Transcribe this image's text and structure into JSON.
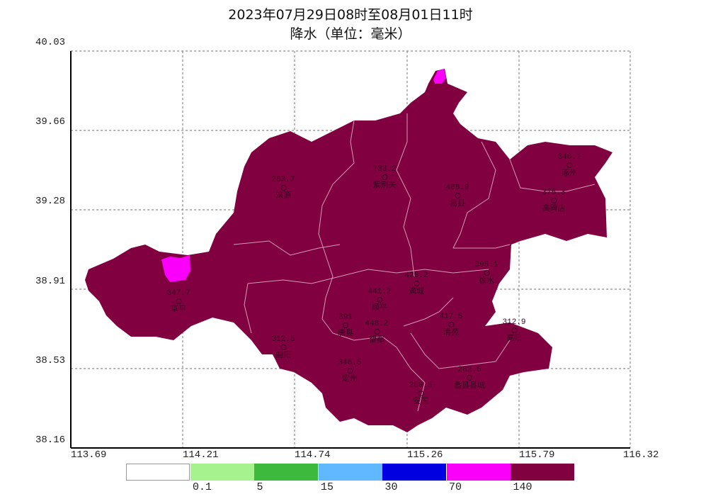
{
  "title": "2023年07月29日08时至08月01日11时",
  "subtitle": "降水（单位：毫米）",
  "y_ticks": [
    "40.03",
    "39.66",
    "39.28",
    "38.91",
    "38.53",
    "38.16"
  ],
  "x_ticks": [
    "113.69",
    "114.21",
    "114.74",
    "115.26",
    "115.79",
    "116.32"
  ],
  "legend": {
    "colors": [
      "#ffffff",
      "#a6f28f",
      "#3dba3d",
      "#61b8ff",
      "#0000e1",
      "#fa00fa",
      "#800040"
    ],
    "labels": [
      "0.1",
      "5",
      "15",
      "30",
      "70",
      "140"
    ]
  },
  "fill_colors": {
    "main": "#800040",
    "secondary": "#fa00fa",
    "border": "#d59ab8"
  },
  "stations": [
    {
      "name": "涞源",
      "value": "283.7"
    },
    {
      "name": "紫荆关",
      "value": "733.2"
    },
    {
      "name": "易县",
      "value": "488.9"
    },
    {
      "name": "涿州",
      "value": "346.1"
    },
    {
      "name": "高碑店",
      "value": "375.3"
    },
    {
      "name": "阜平",
      "value": "347.7"
    },
    {
      "name": "唐县",
      "value": "391"
    },
    {
      "name": "曲阳",
      "value": "312.5"
    },
    {
      "name": "顺平",
      "value": "441.2"
    },
    {
      "name": "满城",
      "value": "426.2"
    },
    {
      "name": "徐水",
      "value": "396.1"
    },
    {
      "name": "清苑",
      "value": "417.5"
    },
    {
      "name": "望都",
      "value": "448.2"
    },
    {
      "name": "高阳",
      "value": "312.9"
    },
    {
      "name": "定州",
      "value": "346.5"
    },
    {
      "name": "安国",
      "value": "269.5"
    },
    {
      "name": "蠡县县城",
      "value": "282.6"
    }
  ]
}
